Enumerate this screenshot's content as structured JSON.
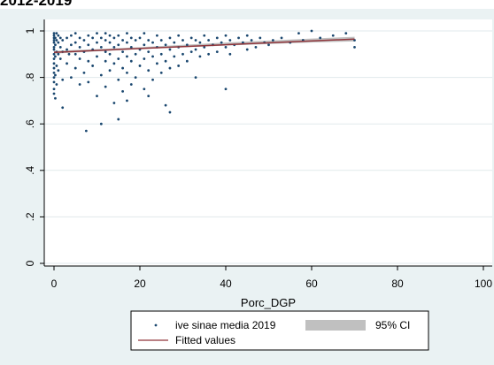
{
  "title": "2012-2019",
  "chart_data": {
    "type": "scatter",
    "title": "2012-2019",
    "xlabel": "Porc_DGP",
    "ylabel": "",
    "xlim": [
      0,
      100
    ],
    "ylim": [
      0,
      1
    ],
    "x_ticks": [
      0,
      20,
      40,
      60,
      80,
      100
    ],
    "y_ticks": [
      0,
      0.2,
      0.4,
      0.6,
      0.8,
      1
    ],
    "x_tick_labels": [
      "0",
      "20",
      "40",
      "60",
      "80",
      "100"
    ],
    "y_tick_labels": [
      "0",
      ".2",
      ".4",
      ".6",
      ".8",
      "1"
    ],
    "grid": true,
    "legend_position": "bottom",
    "colors": {
      "background": "#eaf2f3",
      "plot_area": "#ffffff",
      "grid": "#e1eaec",
      "points": "#1a476f",
      "fit_line": "#90353b",
      "ci_band": "#c0c0c0"
    },
    "series": [
      {
        "name": "ive sinae media 2019",
        "kind": "scatter",
        "points": [
          [
            0,
            0.73
          ],
          [
            0,
            0.75
          ],
          [
            0,
            0.78
          ],
          [
            0,
            0.8
          ],
          [
            0,
            0.82
          ],
          [
            0,
            0.84
          ],
          [
            0,
            0.86
          ],
          [
            0,
            0.88
          ],
          [
            0,
            0.9
          ],
          [
            0,
            0.92
          ],
          [
            0,
            0.93
          ],
          [
            0,
            0.95
          ],
          [
            0,
            0.96
          ],
          [
            0,
            0.97
          ],
          [
            0,
            0.98
          ],
          [
            0,
            0.99
          ],
          [
            0.3,
            0.71
          ],
          [
            0.3,
            0.81
          ],
          [
            0.3,
            0.89
          ],
          [
            0.3,
            0.94
          ],
          [
            0.3,
            0.97
          ],
          [
            0.6,
            0.77
          ],
          [
            0.6,
            0.85
          ],
          [
            0.6,
            0.91
          ],
          [
            0.6,
            0.96
          ],
          [
            0.6,
            0.99
          ],
          [
            1,
            0.83
          ],
          [
            1,
            0.9
          ],
          [
            1,
            0.95
          ],
          [
            1,
            0.98
          ],
          [
            1.5,
            0.88
          ],
          [
            1.5,
            0.93
          ],
          [
            1.5,
            0.97
          ],
          [
            2,
            0.67
          ],
          [
            2,
            0.79
          ],
          [
            2,
            0.91
          ],
          [
            2,
            0.96
          ],
          [
            3,
            0.86
          ],
          [
            3,
            0.92
          ],
          [
            3,
            0.97
          ],
          [
            3.5,
            0.9
          ],
          [
            4,
            0.8
          ],
          [
            4,
            0.94
          ],
          [
            4,
            0.98
          ],
          [
            5,
            0.84
          ],
          [
            5,
            0.9
          ],
          [
            5,
            0.95
          ],
          [
            5,
            0.99
          ],
          [
            6,
            0.77
          ],
          [
            6,
            0.88
          ],
          [
            6,
            0.93
          ],
          [
            6,
            0.97
          ],
          [
            7,
            0.82
          ],
          [
            7,
            0.91
          ],
          [
            7,
            0.96
          ],
          [
            7.5,
            0.57
          ],
          [
            8,
            0.78
          ],
          [
            8,
            0.87
          ],
          [
            8,
            0.94
          ],
          [
            8,
            0.98
          ],
          [
            9,
            0.85
          ],
          [
            9,
            0.92
          ],
          [
            9,
            0.97
          ],
          [
            10,
            0.72
          ],
          [
            10,
            0.89
          ],
          [
            10,
            0.95
          ],
          [
            10,
            0.99
          ],
          [
            11,
            0.6
          ],
          [
            11,
            0.81
          ],
          [
            11,
            0.93
          ],
          [
            11,
            0.97
          ],
          [
            12,
            0.76
          ],
          [
            12,
            0.87
          ],
          [
            12,
            0.91
          ],
          [
            12,
            0.96
          ],
          [
            12,
            0.99
          ],
          [
            13,
            0.83
          ],
          [
            13,
            0.9
          ],
          [
            13,
            0.95
          ],
          [
            13,
            0.98
          ],
          [
            14,
            0.69
          ],
          [
            14,
            0.86
          ],
          [
            14,
            0.93
          ],
          [
            14,
            0.97
          ],
          [
            15,
            0.62
          ],
          [
            15,
            0.79
          ],
          [
            15,
            0.88
          ],
          [
            15,
            0.94
          ],
          [
            15,
            0.98
          ],
          [
            16,
            0.74
          ],
          [
            16,
            0.84
          ],
          [
            16,
            0.91
          ],
          [
            16,
            0.96
          ],
          [
            17,
            0.7
          ],
          [
            17,
            0.82
          ],
          [
            17,
            0.89
          ],
          [
            17,
            0.95
          ],
          [
            17,
            0.99
          ],
          [
            18,
            0.77
          ],
          [
            18,
            0.87
          ],
          [
            18,
            0.93
          ],
          [
            18,
            0.97
          ],
          [
            19,
            0.8
          ],
          [
            19,
            0.9
          ],
          [
            19,
            0.96
          ],
          [
            20,
            0.85
          ],
          [
            20,
            0.92
          ],
          [
            20,
            0.97
          ],
          [
            21,
            0.75
          ],
          [
            21,
            0.88
          ],
          [
            21,
            0.94
          ],
          [
            21,
            0.99
          ],
          [
            22,
            0.72
          ],
          [
            22,
            0.83
          ],
          [
            22,
            0.91
          ],
          [
            22,
            0.96
          ],
          [
            23,
            0.79
          ],
          [
            23,
            0.89
          ],
          [
            23,
            0.95
          ],
          [
            24,
            0.86
          ],
          [
            24,
            0.93
          ],
          [
            24,
            0.98
          ],
          [
            25,
            0.82
          ],
          [
            25,
            0.9
          ],
          [
            25,
            0.96
          ],
          [
            26,
            0.68
          ],
          [
            26,
            0.87
          ],
          [
            26,
            0.94
          ],
          [
            27,
            0.65
          ],
          [
            27,
            0.84
          ],
          [
            27,
            0.92
          ],
          [
            27,
            0.97
          ],
          [
            28,
            0.89
          ],
          [
            28,
            0.95
          ],
          [
            29,
            0.85
          ],
          [
            29,
            0.93
          ],
          [
            29,
            0.98
          ],
          [
            30,
            0.9
          ],
          [
            30,
            0.96
          ],
          [
            31,
            0.87
          ],
          [
            31,
            0.94
          ],
          [
            32,
            0.91
          ],
          [
            32,
            0.97
          ],
          [
            33,
            0.8
          ],
          [
            33,
            0.92
          ],
          [
            33,
            0.96
          ],
          [
            34,
            0.89
          ],
          [
            34,
            0.95
          ],
          [
            35,
            0.93
          ],
          [
            35,
            0.98
          ],
          [
            36,
            0.9
          ],
          [
            36,
            0.96
          ],
          [
            37,
            0.94
          ],
          [
            38,
            0.91
          ],
          [
            38,
            0.97
          ],
          [
            39,
            0.95
          ],
          [
            40,
            0.75
          ],
          [
            40,
            0.93
          ],
          [
            40,
            0.98
          ],
          [
            41,
            0.9
          ],
          [
            41,
            0.96
          ],
          [
            42,
            0.94
          ],
          [
            43,
            0.97
          ],
          [
            44,
            0.95
          ],
          [
            45,
            0.92
          ],
          [
            45,
            0.98
          ],
          [
            46,
            0.96
          ],
          [
            47,
            0.93
          ],
          [
            48,
            0.97
          ],
          [
            49,
            0.95
          ],
          [
            50,
            0.94
          ],
          [
            51,
            0.96
          ],
          [
            53,
            0.97
          ],
          [
            55,
            0.95
          ],
          [
            57,
            0.99
          ],
          [
            58,
            0.96
          ],
          [
            60,
            1.0
          ],
          [
            62,
            0.97
          ],
          [
            65,
            0.98
          ],
          [
            68,
            0.99
          ],
          [
            70,
            0.93
          ],
          [
            70,
            0.96
          ]
        ]
      },
      {
        "name": "Fitted values",
        "kind": "line",
        "points": [
          [
            0,
            0.908
          ],
          [
            70,
            0.965
          ]
        ]
      },
      {
        "name": "95% CI",
        "kind": "band",
        "x": [
          0,
          20,
          40,
          60,
          70
        ],
        "lower": [
          0.902,
          0.922,
          0.937,
          0.95,
          0.955
        ],
        "upper": [
          0.914,
          0.93,
          0.95,
          0.967,
          0.975
        ]
      }
    ]
  }
}
